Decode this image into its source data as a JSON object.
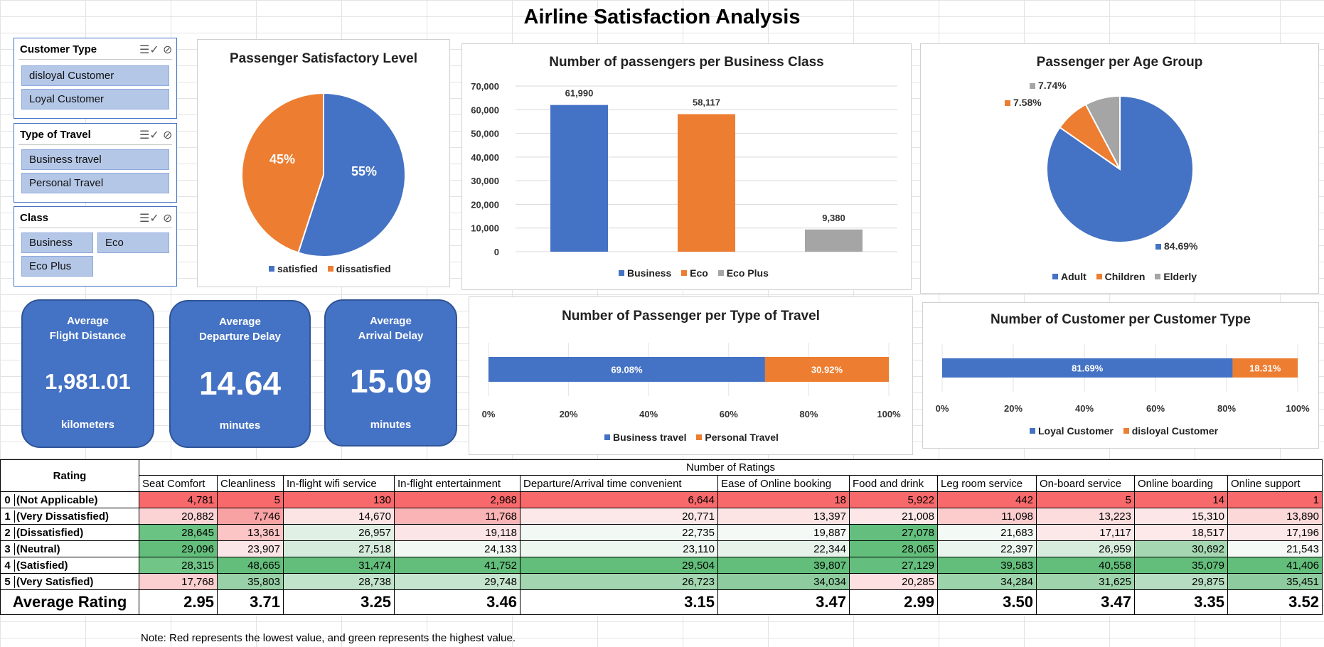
{
  "title": "Airline Satisfaction Analysis",
  "slicers": [
    {
      "title": "Customer Type",
      "items": [
        "disloyal Customer",
        "Loyal Customer"
      ]
    },
    {
      "title": "Type of Travel",
      "items": [
        "Business travel",
        "Personal Travel"
      ]
    },
    {
      "title": "Class",
      "items": [
        "Business",
        "Eco",
        "Eco Plus"
      ]
    }
  ],
  "kpis": [
    {
      "label": "Average\nFlight Distance",
      "value": "1,981.01",
      "unit": "kilometers"
    },
    {
      "label": "Average\nDeparture Delay",
      "value": "14.64",
      "unit": "minutes"
    },
    {
      "label": "Average\nArrival Delay",
      "value": "15.09",
      "unit": "minutes"
    }
  ],
  "colors": {
    "blue": "#4472c4",
    "orange": "#ed7d31",
    "gray": "#a5a5a5"
  },
  "chart_data": [
    {
      "type": "pie",
      "title": "Passenger Satisfactory Level",
      "categories": [
        "satisfied",
        "dissatisfied"
      ],
      "values": [
        55,
        45
      ],
      "data_labels": [
        "55%",
        "45%"
      ],
      "legend": "bottom"
    },
    {
      "type": "bar",
      "title": "Number of passengers per Business Class",
      "categories": [
        "Business",
        "Eco",
        "Eco Plus"
      ],
      "values": [
        61990,
        58117,
        9380
      ],
      "data_labels": [
        "61,990",
        "58,117",
        "9,380"
      ],
      "yticks": [
        "0",
        "10,000",
        "20,000",
        "30,000",
        "40,000",
        "50,000",
        "60,000",
        "70,000"
      ],
      "ylim": [
        0,
        70000
      ],
      "legend": "bottom",
      "grid": true
    },
    {
      "type": "pie",
      "title": "Passenger per Age Group",
      "categories": [
        "Adult",
        "Children",
        "Elderly"
      ],
      "values": [
        84.69,
        7.58,
        7.74
      ],
      "data_labels": [
        "84.69%",
        "7.58%",
        "7.74%"
      ],
      "legend": "bottom"
    },
    {
      "type": "bar",
      "orientation": "horizontal-stacked-100",
      "title": "Number of Passenger per Type of Travel",
      "categories": [
        "Business travel",
        "Personal Travel"
      ],
      "values": [
        69.08,
        30.92
      ],
      "data_labels": [
        "69.08%",
        "30.92%"
      ],
      "xticks": [
        "0%",
        "20%",
        "40%",
        "60%",
        "80%",
        "100%"
      ],
      "legend": "bottom"
    },
    {
      "type": "bar",
      "orientation": "horizontal-stacked-100",
      "title": "Number of Customer per Customer Type",
      "categories": [
        "Loyal Customer",
        "disloyal Customer"
      ],
      "values": [
        81.69,
        18.31
      ],
      "data_labels": [
        "81.69%",
        "18.31%"
      ],
      "xticks": [
        "0%",
        "20%",
        "40%",
        "60%",
        "80%",
        "100%"
      ],
      "legend": "bottom"
    }
  ],
  "ratings_table": {
    "rating_header": "Rating",
    "group_header": "Number of Ratings",
    "columns": [
      "Seat Comfort",
      "Cleanliness",
      "In-flight wifi service",
      "In-flight entertainment",
      "Departure/Arrival time convenient",
      "Ease of Online booking",
      "Food and drink",
      "Leg room service",
      "On-board service",
      "Online boarding",
      "Online support"
    ],
    "rows": [
      {
        "code": "0",
        "label": "(Not Applicable)",
        "values": [
          "4,781",
          "5",
          "130",
          "2,968",
          "6,644",
          "18",
          "5,922",
          "442",
          "5",
          "14",
          "1"
        ],
        "colors": [
          "#f8696b",
          "#f8696b",
          "#f8696b",
          "#f8696b",
          "#f8696b",
          "#f8696b",
          "#f8696b",
          "#f8696b",
          "#f8696b",
          "#f8696b",
          "#f8696b"
        ]
      },
      {
        "code": "1",
        "label": "(Very Dissatisfied)",
        "values": [
          "20,882",
          "7,746",
          "14,670",
          "11,768",
          "20,771",
          "13,397",
          "21,008",
          "11,098",
          "13,223",
          "15,310",
          "13,890"
        ],
        "colors": [
          "#fbd3d4",
          "#f9a2a3",
          "#fce4e5",
          "#fbb4b5",
          "#fde8e9",
          "#fce4e5",
          "#fde6e7",
          "#fccccd",
          "#fcdcdd",
          "#fde6e7",
          "#fcd8d9"
        ]
      },
      {
        "code": "2",
        "label": "(Dissatisfied)",
        "values": [
          "28,645",
          "13,361",
          "26,957",
          "19,118",
          "22,735",
          "19,887",
          "27,078",
          "21,683",
          "17,117",
          "18,517",
          "17,196"
        ],
        "colors": [
          "#6ac283",
          "#fbc4c5",
          "#e1f0e4",
          "#fce5e6",
          "#f2f8f3",
          "#f4f9f5",
          "#64bf7e",
          "#f3f9f5",
          "#fde8e9",
          "#fde9ea",
          "#fde8e9"
        ]
      },
      {
        "code": "3",
        "label": "(Neutral)",
        "values": [
          "29,096",
          "23,907",
          "27,518",
          "24,133",
          "23,110",
          "22,344",
          "28,065",
          "22,397",
          "26,959",
          "30,692",
          "21,543"
        ],
        "colors": [
          "#63be7b",
          "#fce5e6",
          "#d5ebdb",
          "#f2f8f3",
          "#edf6ef",
          "#e7f3ea",
          "#63be7b",
          "#eaf5ed",
          "#d8ecdd",
          "#a6d7b3",
          "#f5faf6"
        ]
      },
      {
        "code": "4",
        "label": "(Satisfied)",
        "values": [
          "28,315",
          "48,665",
          "31,474",
          "41,752",
          "29,504",
          "39,807",
          "27,129",
          "39,583",
          "40,558",
          "35,079",
          "41,406"
        ],
        "colors": [
          "#70c587",
          "#63be7b",
          "#63be7b",
          "#63be7b",
          "#63be7b",
          "#63be7b",
          "#64bf7e",
          "#63be7b",
          "#63be7b",
          "#63be7b",
          "#63be7b"
        ]
      },
      {
        "code": "5",
        "label": "(Very Satisfied)",
        "values": [
          "17,768",
          "35,803",
          "28,738",
          "29,748",
          "26,723",
          "34,034",
          "20,285",
          "34,284",
          "31,625",
          "29,875",
          "35,451"
        ],
        "colors": [
          "#fbcfd0",
          "#98d0a7",
          "#c2e3cb",
          "#c6e5ce",
          "#a2d5b0",
          "#8ecc9f",
          "#fde0e1",
          "#9cd3aa",
          "#9ed3ab",
          "#b6ddc1",
          "#8ecc9f"
        ]
      }
    ],
    "average_label": "Average Rating",
    "averages": [
      "2.95",
      "3.71",
      "3.25",
      "3.46",
      "3.15",
      "3.47",
      "2.99",
      "3.50",
      "3.47",
      "3.35",
      "3.52"
    ]
  },
  "note": "Note: Red represents the lowest value, and green represents the highest value."
}
